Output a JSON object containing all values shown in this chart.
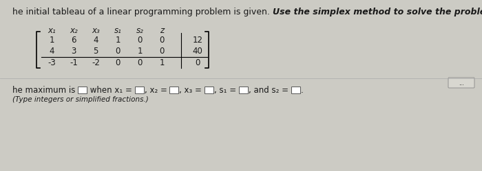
{
  "title_normal": "he initial tableau of a linear programming problem is given. ",
  "title_italic": "Use the simplex method to solve the problem.",
  "col_headers": [
    "x₁",
    "x₂",
    "x₃",
    "s₁",
    "s₂",
    "z"
  ],
  "matrix": [
    [
      1,
      6,
      4,
      1,
      0,
      0,
      12
    ],
    [
      4,
      3,
      5,
      0,
      1,
      0,
      40
    ],
    [
      -3,
      -1,
      -2,
      0,
      0,
      1,
      0
    ]
  ],
  "bg_color": "#cccbc4",
  "text_color": "#1a1a1a",
  "font_size_title": 9.0,
  "font_size_matrix": 8.5,
  "font_size_bottom": 8.5,
  "font_size_small": 7.5
}
